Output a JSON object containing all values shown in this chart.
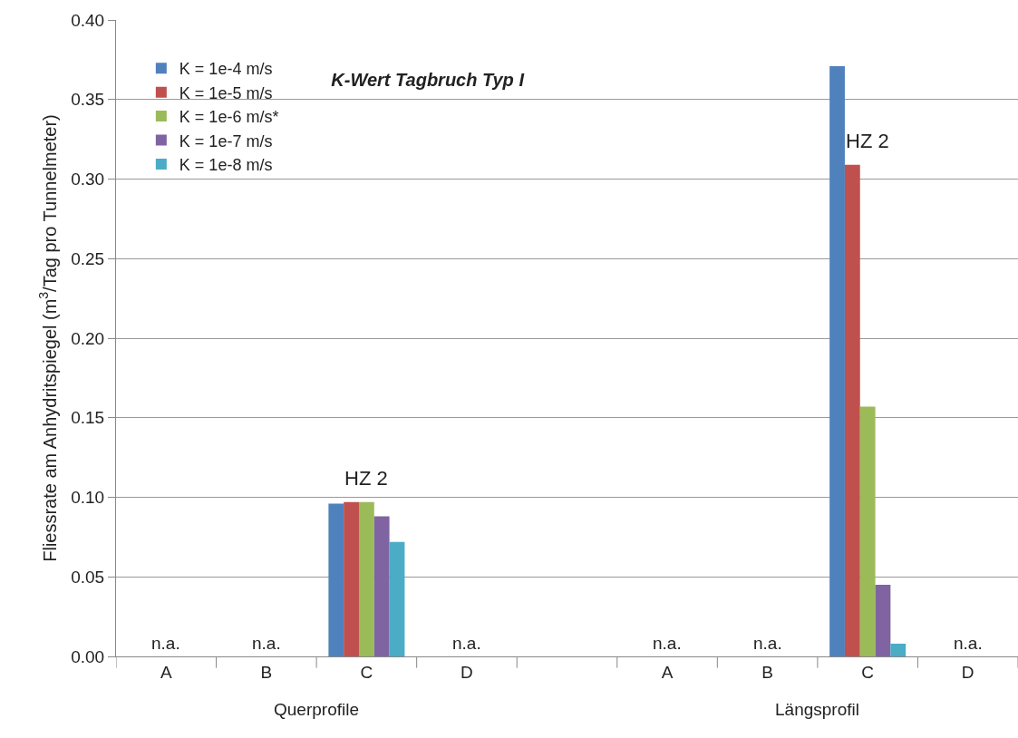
{
  "chart_data": {
    "type": "bar",
    "title": "K-Wert Tagbruch Typ I",
    "ylabel": "Fliessrate am Anhydritspiegel (m$^{3}$/Tag pro Tunnelmeter)",
    "categories": [
      "A",
      "B",
      "C",
      "D",
      null,
      "A",
      "B",
      "C",
      "D"
    ],
    "series": [
      {
        "name": "K = 1e-4 m/s",
        "color": "#4f81bd",
        "values": [
          null,
          null,
          0.096,
          null,
          null,
          null,
          null,
          0.371,
          null
        ]
      },
      {
        "name": "K = 1e-5 m/s",
        "color": "#c0504d",
        "values": [
          null,
          null,
          0.097,
          null,
          null,
          null,
          null,
          0.309,
          null
        ]
      },
      {
        "name": "K = 1e-6 m/s*",
        "color": "#9bbb59",
        "values": [
          null,
          null,
          0.097,
          null,
          null,
          null,
          null,
          0.157,
          null
        ],
        "value_labels": [
          "n.a.",
          "n.a.",
          null,
          "n.a.",
          null,
          "n.a.",
          "n.a.",
          null,
          "n.a."
        ]
      },
      {
        "name": "K = 1e-7 m/s",
        "color": "#8064a2",
        "values": [
          null,
          null,
          0.088,
          null,
          null,
          null,
          null,
          0.045,
          null
        ]
      },
      {
        "name": "K = 1e-8 m/s",
        "color": "#4bacc6",
        "values": [
          null,
          null,
          0.072,
          null,
          null,
          null,
          null,
          0.008,
          null
        ]
      }
    ],
    "annotations": [
      "HZ 2",
      "HZ 2",
      "Querprofile",
      "Längsprofil"
    ],
    "ylim": [
      0,
      0.4
    ],
    "yticks": [
      {
        "value": 0,
        "label": "0.00"
      },
      0.05,
      {
        "value": 0.1,
        "label": "0.10"
      },
      0.15,
      {
        "value": 0.2,
        "label": "0.20"
      },
      0.25,
      {
        "value": 0.3,
        "label": "0.30"
      },
      0.35,
      {
        "value": 0.4,
        "label": "0.40"
      }
    ],
    "grid": "y",
    "legend": "top left"
  }
}
